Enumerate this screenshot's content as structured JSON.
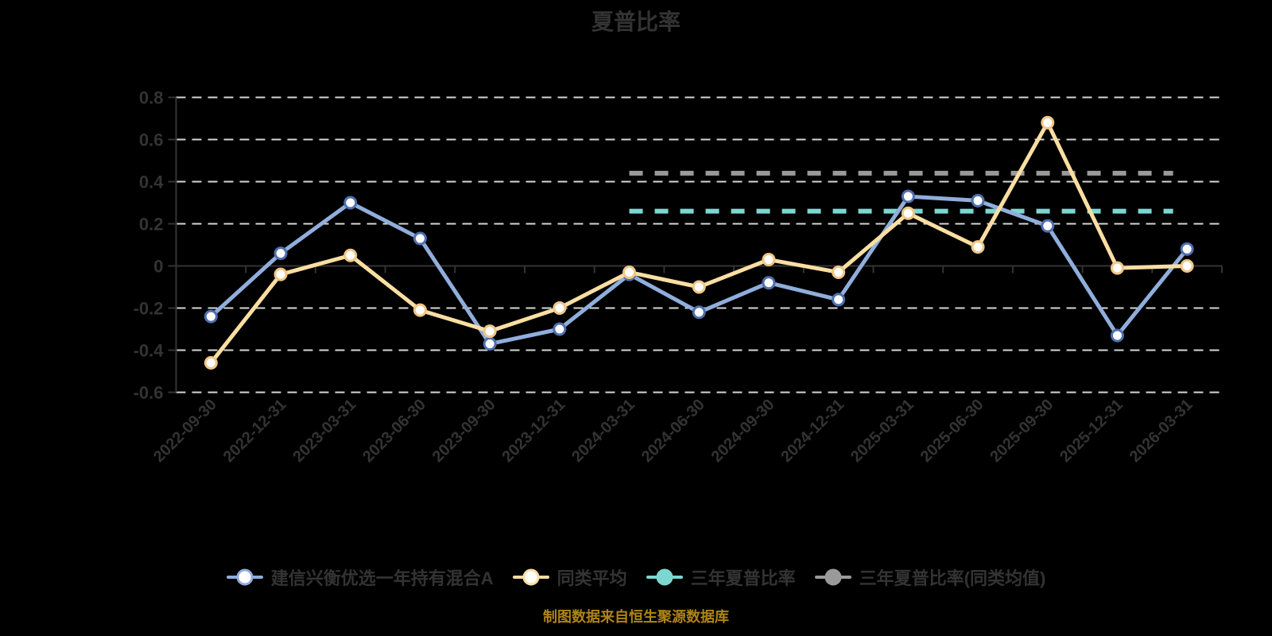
{
  "footer": {
    "caption": "制图数据来自恒生聚源数据库",
    "caption_color": "#AF8415"
  },
  "chart_data": {
    "type": "line",
    "title": "夏普比率",
    "categories": [
      "2022-09-30",
      "2022-12-31",
      "2023-03-31",
      "2023-06-30",
      "2023-09-30",
      "2023-12-31",
      "2024-03-31",
      "2024-06-30",
      "2024-09-30",
      "2024-12-31",
      "2025-03-31",
      "2025-06-30",
      "2025-09-30",
      "2025-12-31",
      "2026-03-31"
    ],
    "series": [
      {
        "key": "fund",
        "name": "建信兴衡优选一年持有混合A",
        "type": "line",
        "color": "#90AEDC",
        "marker": "hollow-circle",
        "marker_stroke": "#4F6FAE",
        "values": [
          -0.24,
          0.06,
          0.3,
          0.13,
          -0.37,
          -0.3,
          -0.04,
          -0.22,
          -0.08,
          -0.16,
          0.33,
          0.31,
          0.19,
          -0.33,
          0.08
        ]
      },
      {
        "key": "category-average",
        "name": "同类平均",
        "type": "line",
        "color": "#FBDEA2",
        "marker": "hollow-circle",
        "marker_stroke": "#F0C685",
        "values": [
          -0.46,
          -0.04,
          0.05,
          -0.21,
          -0.31,
          -0.2,
          -0.03,
          -0.1,
          0.03,
          -0.03,
          0.25,
          0.09,
          0.68,
          -0.01,
          0.0
        ]
      },
      {
        "key": "three-year-sharpe",
        "name": "三年夏普比率",
        "type": "refline",
        "color": "#7CD7D0",
        "marker": "filled-circle",
        "value": 0.26,
        "span_start_category": "2024-03-31",
        "span_start_index": 6,
        "span_end_index": 13.8
      },
      {
        "key": "three-year-sharpe-average",
        "name": "三年夏普比率(同类均值)",
        "type": "refline",
        "color": "#9A9A9A",
        "marker": "filled-circle",
        "value": 0.44,
        "span_start_category": "2024-03-31",
        "span_start_index": 6,
        "span_end_index": 13.8
      }
    ],
    "yticks": [
      0.8,
      0.6,
      0.4,
      0.2,
      0,
      -0.2,
      -0.4,
      -0.6
    ],
    "ylim": [
      -0.6,
      0.8
    ],
    "grid": "horizontal-dashed",
    "legend_position": "bottom",
    "colors": {
      "grid": "#D6D6D6",
      "axis": "#333333",
      "label": "#333333"
    }
  }
}
